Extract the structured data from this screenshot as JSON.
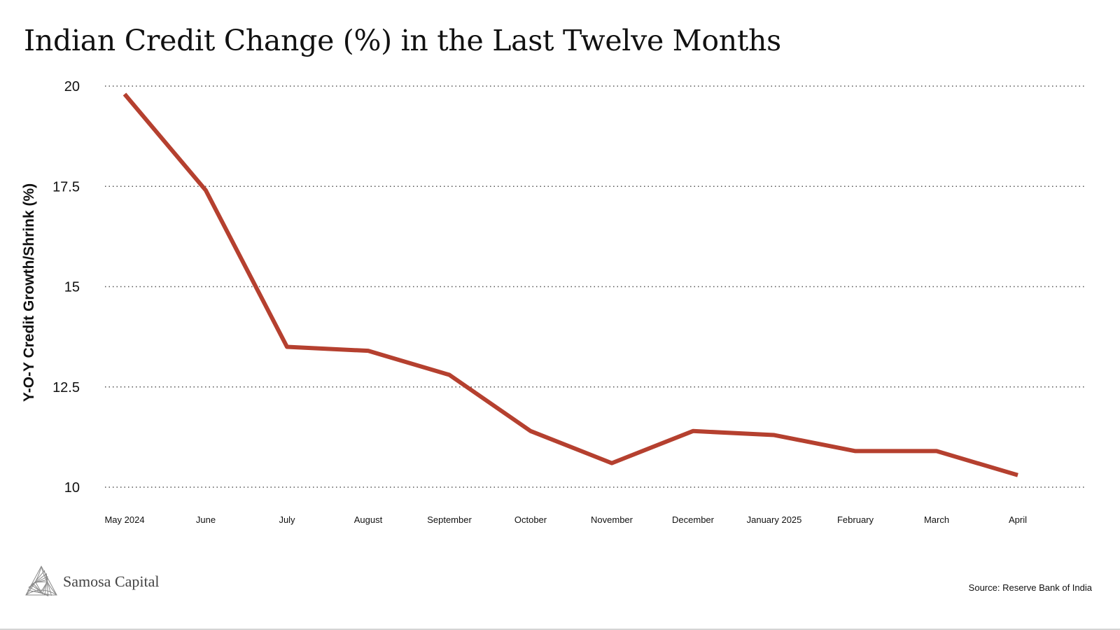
{
  "chart_data": {
    "type": "line",
    "title": "Indian Credit Change (%) in the Last Twelve Months",
    "xlabel": "",
    "ylabel": "Y-O-Y Credit Growth/Shrink (%)",
    "categories": [
      "May 2024",
      "June",
      "July",
      "August",
      "September",
      "October",
      "November",
      "December",
      "January 2025",
      "February",
      "March",
      "April"
    ],
    "series": [
      {
        "values": [
          19.8,
          17.4,
          13.5,
          13.4,
          12.8,
          11.4,
          10.6,
          11.4,
          11.3,
          10.9,
          10.9,
          10.3
        ],
        "color": "#b5402f"
      }
    ],
    "yticks": [
      "20",
      "17.5",
      "15",
      "12.5",
      "10"
    ],
    "ylim": [
      10,
      20
    ],
    "grid": "horizontal dotted",
    "legend": "none"
  },
  "branding": {
    "name": "Samosa Capital",
    "logo_icon": "triangle-swirl-logo"
  },
  "source": "Source: Reserve Bank of India"
}
